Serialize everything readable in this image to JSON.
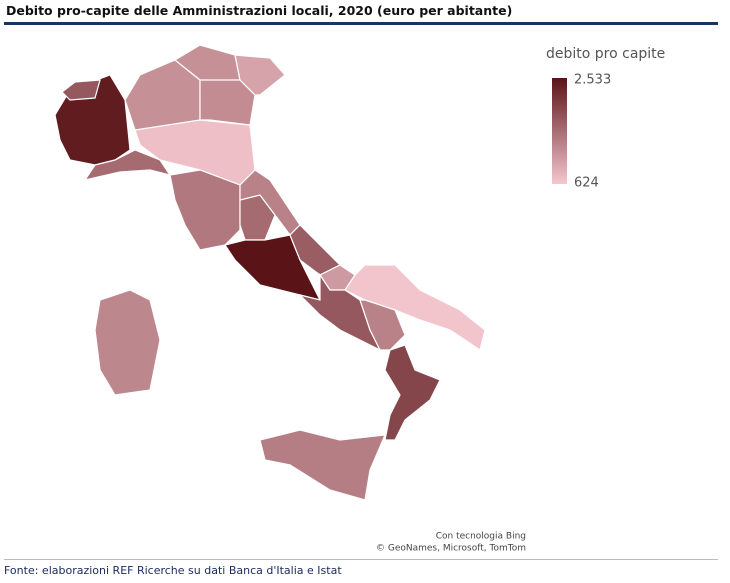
{
  "title": "Debito pro-capite delle Amministrazioni locali, 2020 (euro per abitante)",
  "chart_data": {
    "type": "choropleth",
    "legend_title": "debito pro capite",
    "colorlim": [
      624,
      2533
    ],
    "color_range": [
      "#f4c6ce",
      "#5a1418"
    ],
    "legend_ticks": [
      {
        "value": 2533,
        "label": "2.533"
      },
      624
    ],
    "values": [
      2450,
      1800,
      1200,
      1200,
      1250,
      1000,
      1600,
      700,
      1450,
      1600,
      1350,
      2533,
      1750,
      1100,
      1800,
      650,
      1350,
      2000,
      1400,
      1300
    ]
  },
  "attribution": [
    "Con tecnologia Bing",
    "© GeoNames, Microsoft, TomTom"
  ],
  "source": "Fonte: elaborazioni REF Ricerche su dati Banca d'Italia e Istat"
}
